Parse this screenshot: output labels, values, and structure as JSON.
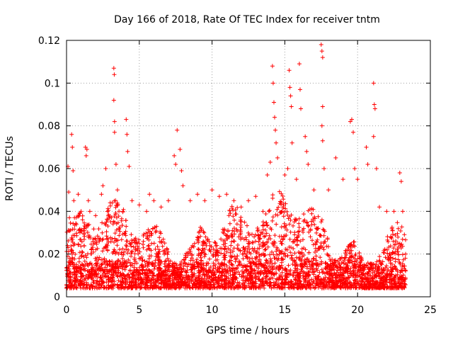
{
  "chart_data": {
    "type": "scatter",
    "title": "Day 166 of 2018, Rate Of TEC Index for receiver tntm",
    "xlabel": "GPS time / hours",
    "ylabel": "ROTI / TECUs",
    "xlim": [
      0,
      25
    ],
    "ylim": [
      0,
      0.12
    ],
    "xticks": [
      0,
      5,
      10,
      15,
      20,
      25
    ],
    "xtick_labels": [
      "0",
      "5",
      "10",
      "15",
      "20",
      "25"
    ],
    "yticks": [
      0,
      0.02,
      0.04,
      0.06,
      0.08,
      0.1,
      0.12
    ],
    "ytick_labels": [
      "0",
      "0.02",
      "0.04",
      "0.06",
      "0.08",
      "0.1",
      "0.12"
    ],
    "grid": true,
    "marker": "+",
    "color": "#ff0000",
    "data_range_x": [
      0.0,
      23.3
    ],
    "series": [
      {
        "name": "ROTI",
        "points": [
          [
            0.1,
            0.061
          ],
          [
            0.15,
            0.049
          ],
          [
            0.2,
            0.037
          ],
          [
            0.35,
            0.076
          ],
          [
            0.4,
            0.07
          ],
          [
            0.45,
            0.059
          ],
          [
            0.5,
            0.045
          ],
          [
            0.8,
            0.048
          ],
          [
            1.0,
            0.04
          ],
          [
            1.3,
            0.07
          ],
          [
            1.35,
            0.066
          ],
          [
            1.4,
            0.069
          ],
          [
            1.5,
            0.045
          ],
          [
            1.6,
            0.04
          ],
          [
            2.0,
            0.038
          ],
          [
            2.4,
            0.048
          ],
          [
            2.5,
            0.052
          ],
          [
            2.7,
            0.06
          ],
          [
            3.0,
            0.044
          ],
          [
            3.25,
            0.107
          ],
          [
            3.28,
            0.104
          ],
          [
            3.25,
            0.092
          ],
          [
            3.3,
            0.082
          ],
          [
            3.3,
            0.077
          ],
          [
            3.4,
            0.062
          ],
          [
            3.5,
            0.05
          ],
          [
            4.1,
            0.083
          ],
          [
            4.15,
            0.076
          ],
          [
            4.2,
            0.068
          ],
          [
            4.3,
            0.061
          ],
          [
            4.5,
            0.045
          ],
          [
            5.0,
            0.043
          ],
          [
            5.5,
            0.04
          ],
          [
            5.7,
            0.048
          ],
          [
            6.0,
            0.045
          ],
          [
            6.5,
            0.042
          ],
          [
            7.0,
            0.045
          ],
          [
            7.4,
            0.066
          ],
          [
            7.5,
            0.062
          ],
          [
            7.6,
            0.078
          ],
          [
            7.8,
            0.069
          ],
          [
            7.9,
            0.059
          ],
          [
            8.0,
            0.052
          ],
          [
            8.5,
            0.045
          ],
          [
            9.0,
            0.048
          ],
          [
            9.5,
            0.045
          ],
          [
            10.0,
            0.05
          ],
          [
            10.5,
            0.047
          ],
          [
            11.0,
            0.048
          ],
          [
            11.5,
            0.045
          ],
          [
            12.0,
            0.042
          ],
          [
            12.5,
            0.045
          ],
          [
            13.0,
            0.047
          ],
          [
            13.5,
            0.04
          ],
          [
            13.8,
            0.057
          ],
          [
            14.0,
            0.063
          ],
          [
            14.15,
            0.108
          ],
          [
            14.2,
            0.1
          ],
          [
            14.25,
            0.091
          ],
          [
            14.3,
            0.084
          ],
          [
            14.35,
            0.078
          ],
          [
            14.4,
            0.072
          ],
          [
            14.5,
            0.065
          ],
          [
            15.0,
            0.057
          ],
          [
            15.2,
            0.06
          ],
          [
            15.3,
            0.106
          ],
          [
            15.35,
            0.098
          ],
          [
            15.4,
            0.094
          ],
          [
            15.45,
            0.089
          ],
          [
            15.5,
            0.072
          ],
          [
            15.8,
            0.055
          ],
          [
            16.0,
            0.109
          ],
          [
            16.05,
            0.097
          ],
          [
            16.1,
            0.088
          ],
          [
            16.4,
            0.075
          ],
          [
            16.5,
            0.068
          ],
          [
            16.6,
            0.062
          ],
          [
            17.0,
            0.05
          ],
          [
            17.5,
            0.118
          ],
          [
            17.55,
            0.115
          ],
          [
            17.6,
            0.112
          ],
          [
            17.6,
            0.089
          ],
          [
            17.55,
            0.08
          ],
          [
            17.6,
            0.073
          ],
          [
            17.7,
            0.06
          ],
          [
            18.0,
            0.05
          ],
          [
            18.5,
            0.065
          ],
          [
            19.0,
            0.055
          ],
          [
            19.5,
            0.082
          ],
          [
            19.6,
            0.083
          ],
          [
            19.7,
            0.077
          ],
          [
            19.8,
            0.06
          ],
          [
            20.0,
            0.055
          ],
          [
            20.6,
            0.07
          ],
          [
            20.7,
            0.062
          ],
          [
            21.1,
            0.1
          ],
          [
            21.15,
            0.09
          ],
          [
            21.2,
            0.088
          ],
          [
            21.1,
            0.075
          ],
          [
            21.3,
            0.06
          ],
          [
            21.5,
            0.042
          ],
          [
            22.0,
            0.04
          ],
          [
            22.5,
            0.04
          ],
          [
            22.9,
            0.058
          ],
          [
            23.0,
            0.054
          ],
          [
            23.1,
            0.04
          ],
          [
            23.3,
            0.02
          ]
        ]
      }
    ]
  }
}
